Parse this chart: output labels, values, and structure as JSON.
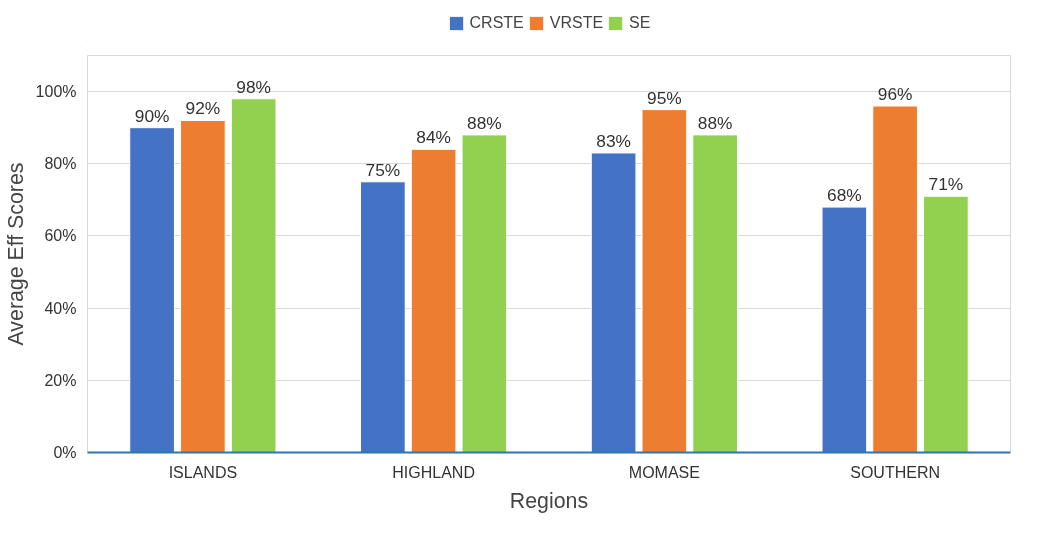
{
  "chart_data": {
    "type": "bar",
    "xlabel": "Regions",
    "ylabel": "Average Eff Scores",
    "categories": [
      "ISLANDS",
      "HIGHLAND",
      "MOMASE",
      "SOUTHERN"
    ],
    "series": [
      {
        "name": "CRSTE",
        "color": "#4472c4",
        "values": [
          90,
          75,
          83,
          68
        ],
        "value_labels": [
          "90%",
          "75%",
          "83%",
          "68%"
        ]
      },
      {
        "name": "VRSTE",
        "color": "#ed7d31",
        "values": [
          92,
          84,
          95,
          96
        ],
        "value_labels": [
          "92%",
          "84%",
          "95%",
          "96%"
        ]
      },
      {
        "name": "SE",
        "color": "#92d050",
        "values": [
          98,
          88,
          88,
          71
        ],
        "value_labels": [
          "98%",
          "88%",
          "88%",
          "71%"
        ]
      }
    ],
    "ylim": [
      0,
      110
    ],
    "yticks": [
      {
        "value": 0,
        "label": "0%"
      },
      {
        "value": 20,
        "label": "20%"
      },
      {
        "value": 40,
        "label": "40%"
      },
      {
        "value": 60,
        "label": "60%"
      },
      {
        "value": 80,
        "label": "80%"
      },
      {
        "value": 100,
        "label": "100%"
      }
    ],
    "grid": "y",
    "legend": "top"
  }
}
